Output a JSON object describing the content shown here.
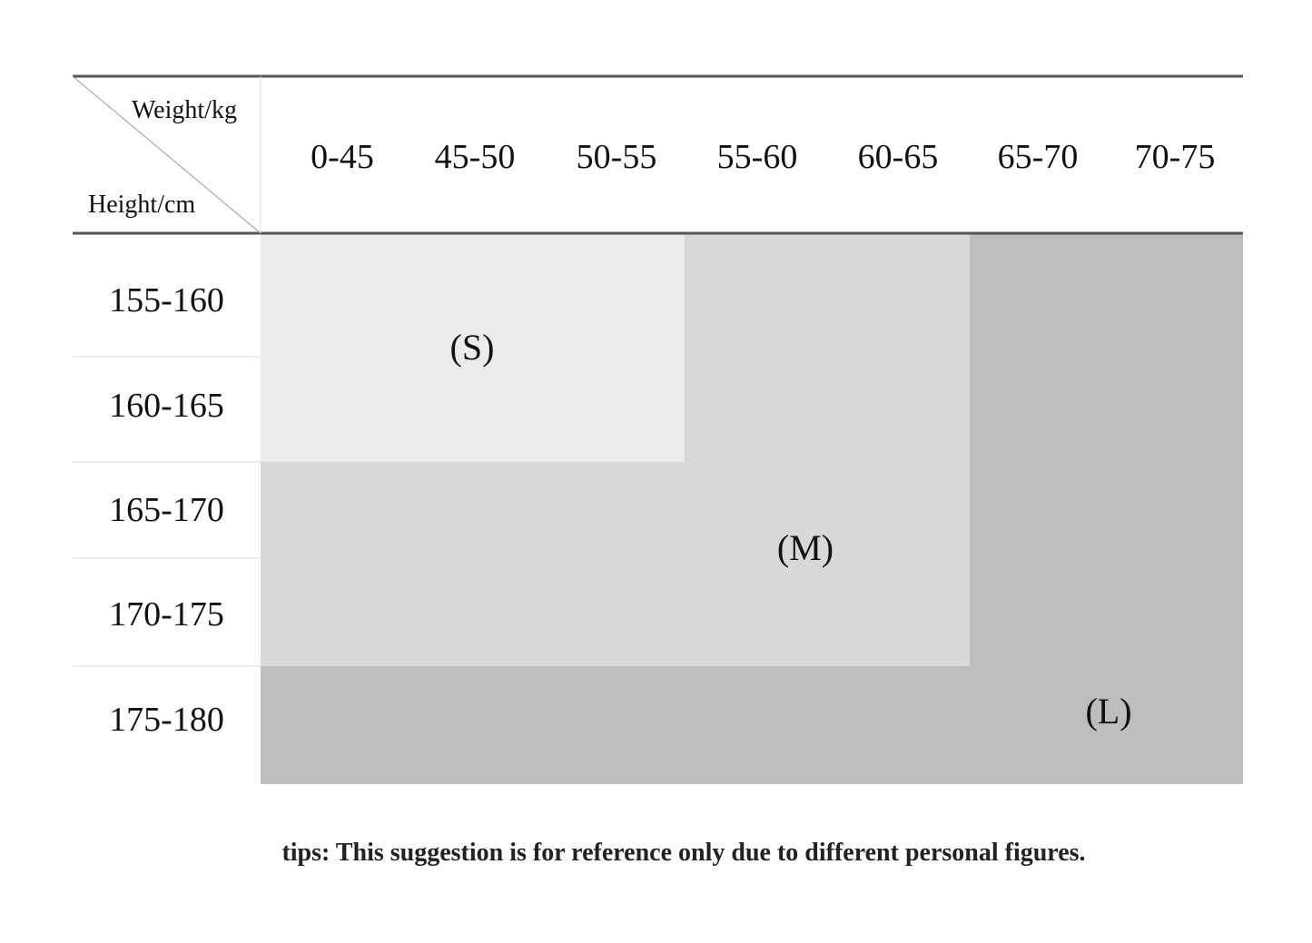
{
  "header": {
    "weight_label": "Weight/kg",
    "height_label": "Height/cm"
  },
  "table": {
    "columns": [
      "0-45",
      "45-50",
      "50-55",
      "55-60",
      "60-65",
      "65-70",
      "70-75"
    ],
    "rows": [
      "155-160",
      "160-165",
      "165-170",
      "170-175",
      "175-180"
    ],
    "sizes": [
      "(S)",
      "(M)",
      "(L)"
    ]
  },
  "footer": {
    "tip": "tips: This suggestion is for reference only due to different personal figures."
  }
}
